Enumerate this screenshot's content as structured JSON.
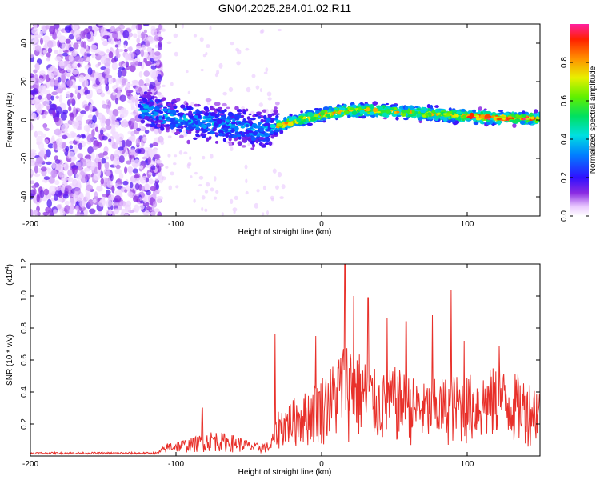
{
  "title": "GN04.2025.284.01.02.R11",
  "chart_data": [
    {
      "type": "heatmap",
      "name": "spectrogram",
      "xlabel": "Height of straight line (km)",
      "ylabel": "Frequency (Hz)",
      "xlim": [
        -200,
        150
      ],
      "ylim": [
        -50,
        50
      ],
      "xticks": [
        "-200",
        "-100",
        "0",
        "100"
      ],
      "yticks": [
        "-40",
        "-20",
        "0",
        "20",
        "40"
      ],
      "colorbar": {
        "label": "Normalized spectral amplitude",
        "range": [
          0,
          1
        ],
        "ticks": [
          "0.0",
          "0.2",
          "0.4",
          "0.6",
          "0.8"
        ]
      },
      "ridge": {
        "x": [
          -120,
          -110,
          -100,
          -90,
          -80,
          -70,
          -60,
          -50,
          -40,
          -30,
          -20,
          -10,
          0,
          10,
          20,
          40,
          60,
          80,
          100,
          120,
          140,
          150
        ],
        "y": [
          5,
          3,
          1,
          -1,
          -1,
          -2,
          -3,
          -5,
          -5,
          -3,
          -1,
          1,
          3,
          4,
          5,
          5,
          4,
          3,
          2,
          1,
          1,
          1
        ]
      }
    },
    {
      "type": "line",
      "name": "snr",
      "xlabel": "Height of straight line (km)",
      "ylabel": "SNR (10 * v/v)",
      "yscale_label_base": "(x10",
      "yscale_label_exp": "4",
      "yscale_label_close": ")",
      "xlim": [
        -200,
        150
      ],
      "ylim": [
        0,
        1.2
      ],
      "xticks": [
        "-200",
        "-100",
        "0",
        "100"
      ],
      "yticks": [
        "0.2",
        "0.4",
        "0.6",
        "0.8",
        "1.0",
        "1.2"
      ],
      "color": "#e8302a",
      "envelope": {
        "x": [
          -200,
          -112,
          -105,
          -90,
          -75,
          -60,
          -45,
          -35,
          -30,
          -20,
          -10,
          0,
          10,
          15,
          20,
          30,
          40,
          50,
          60,
          70,
          80,
          90,
          100,
          110,
          120,
          130,
          140,
          150
        ],
        "y": [
          0.02,
          0.02,
          0.08,
          0.1,
          0.15,
          0.12,
          0.07,
          0.08,
          0.28,
          0.35,
          0.4,
          0.5,
          0.6,
          0.75,
          0.72,
          0.6,
          0.5,
          0.55,
          0.5,
          0.45,
          0.48,
          0.5,
          0.5,
          0.52,
          0.55,
          0.52,
          0.48,
          0.45
        ]
      },
      "peaks": [
        {
          "x": -82,
          "y": 0.3
        },
        {
          "x": -32,
          "y": 0.76
        },
        {
          "x": -4,
          "y": 0.75
        },
        {
          "x": 16,
          "y": 1.2
        },
        {
          "x": 22,
          "y": 1.0
        },
        {
          "x": 32,
          "y": 0.99
        },
        {
          "x": 45,
          "y": 0.86
        },
        {
          "x": 58,
          "y": 0.84
        },
        {
          "x": 76,
          "y": 0.88
        },
        {
          "x": 89,
          "y": 1.04
        },
        {
          "x": 98,
          "y": 0.72
        },
        {
          "x": 122,
          "y": 0.69
        }
      ]
    }
  ]
}
